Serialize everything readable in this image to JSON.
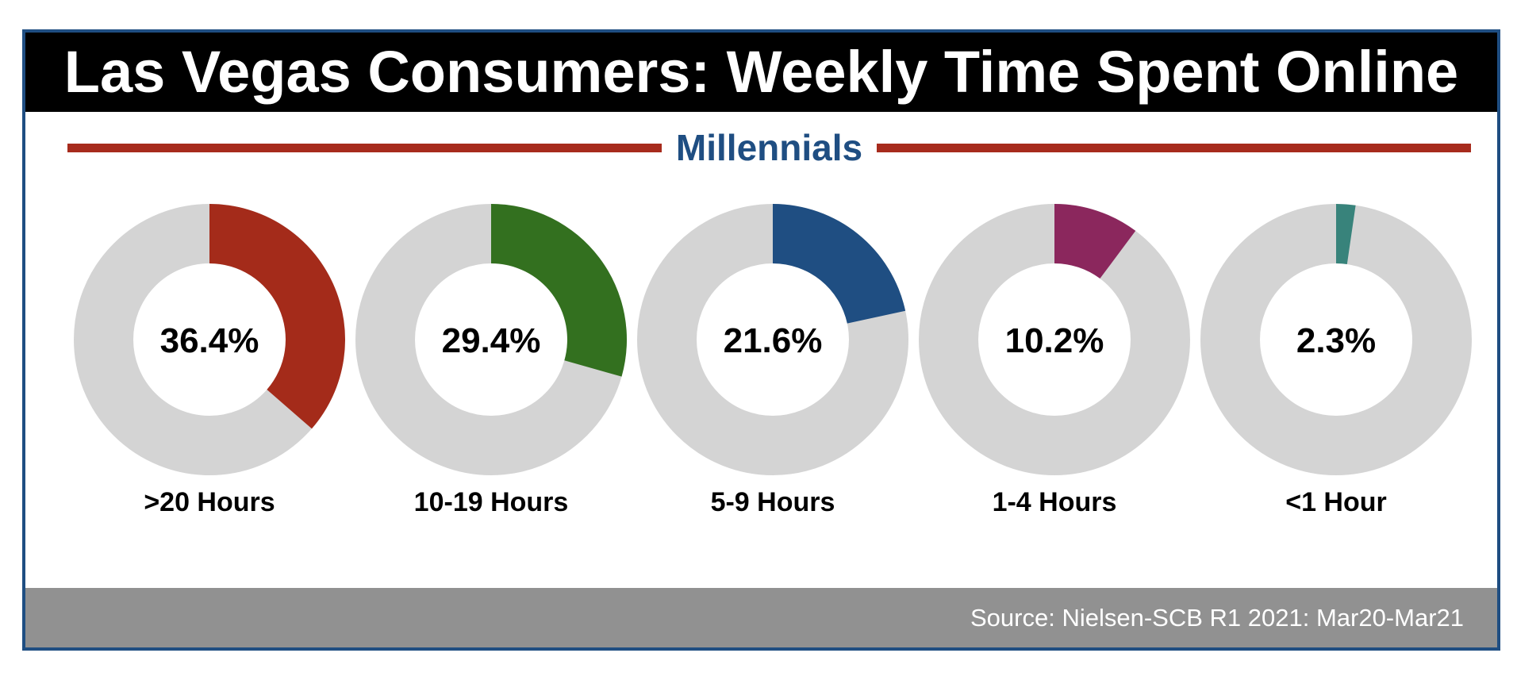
{
  "title": "Las Vegas Consumers: Weekly Time Spent Online",
  "subtitle": "Millennials",
  "source": "Source: Nielsen-SCB R1 2021: Mar20-Mar21",
  "colors": {
    "frame": "#1f4e82",
    "title_bg": "#000000",
    "rule": "#a72b1d",
    "subtitle": "#1f4e82",
    "track": "#d4d4d4",
    "footer": "#919191"
  },
  "chart_data": {
    "type": "pie",
    "style": "donut",
    "categories": [
      ">20 Hours",
      "10-19 Hours",
      "5-9 Hours",
      "1-4 Hours",
      "<1 Hour"
    ],
    "values": [
      36.4,
      29.4,
      21.6,
      10.2,
      2.3
    ],
    "value_labels": [
      "36.4%",
      "29.4%",
      "21.6%",
      "10.2%",
      "2.3%"
    ],
    "unit": "%",
    "series_colors": [
      "#a42b1a",
      "#33701f",
      "#1f4e82",
      "#8b275d",
      "#38837b"
    ]
  }
}
